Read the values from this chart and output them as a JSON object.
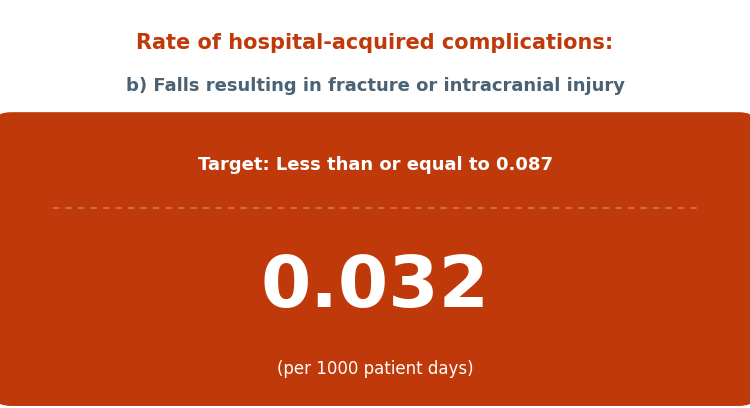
{
  "title_line1": "Rate of hospital-acquired complications:",
  "title_line2": "b) Falls resulting in fracture or intracranial injury",
  "title_color": "#c0390a",
  "subtitle_color": "#4a6274",
  "box_color": "#c0390a",
  "target_text": "Target: Less than or equal to 0.087",
  "value_text": "0.032",
  "unit_text": "(per 1000 patient days)",
  "text_color_white": "#ffffff",
  "dashed_line_color": "#c87040",
  "background_color": "#ffffff",
  "title_fontsize": 15,
  "subtitle_fontsize": 13,
  "target_fontsize": 13,
  "value_fontsize": 52,
  "unit_fontsize": 12
}
